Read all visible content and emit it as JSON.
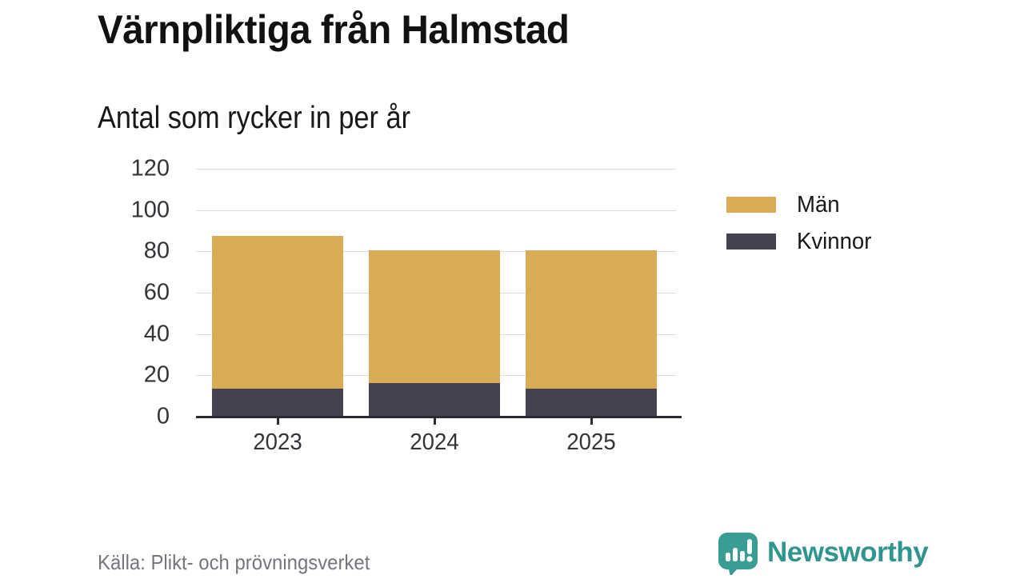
{
  "title": "Värnpliktiga från Halmstad",
  "subtitle": "Antal som rycker in per år",
  "source": "Källa: Plikt- och prövningsverket",
  "brand": {
    "name": "Newsworthy",
    "color": "#2f968f",
    "icon_color": "#3a9d94"
  },
  "colors": {
    "men": "#d9ab57",
    "women": "#424250",
    "grid": "#dcdcdc",
    "axis": "#2b2b31",
    "text": "#17171c",
    "muted_text": "#75757d"
  },
  "legend": [
    {
      "label": "Män",
      "color": "#d9ab57"
    },
    {
      "label": "Kvinnor",
      "color": "#424250"
    }
  ],
  "chart_data": {
    "type": "bar",
    "stacked": true,
    "title": "Värnpliktiga från Halmstad",
    "subtitle_as_ylabel": "Antal som rycker in per år",
    "categories": [
      "2023",
      "2024",
      "2025"
    ],
    "series": [
      {
        "name": "Kvinnor",
        "color": "#424250",
        "values": [
          13,
          16,
          13
        ]
      },
      {
        "name": "Män",
        "color": "#d9ab57",
        "values": [
          74,
          64,
          67
        ]
      }
    ],
    "totals": [
      87,
      80,
      80
    ],
    "ylim": [
      0,
      120
    ],
    "yticks": [
      0,
      20,
      40,
      60,
      80,
      100,
      120
    ],
    "xlabel": "",
    "ylabel": "",
    "grid": true,
    "legend_position": "right"
  }
}
